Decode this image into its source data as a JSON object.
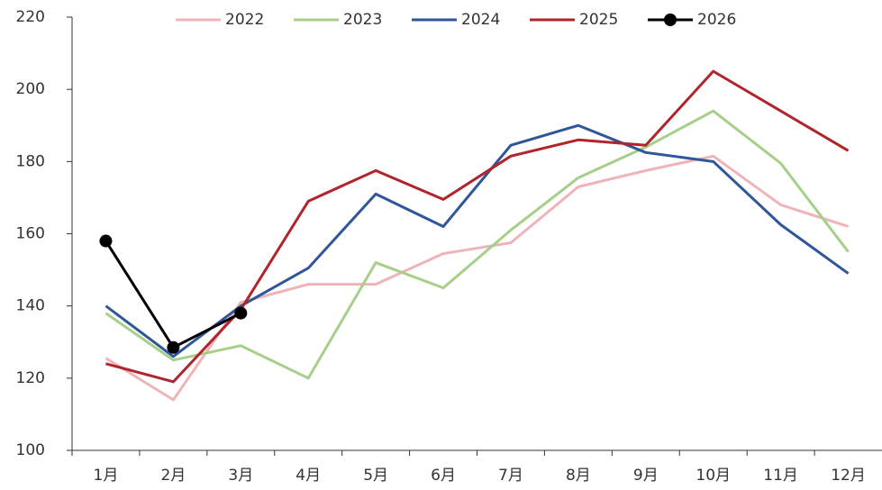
{
  "chart_data": {
    "type": "line",
    "categories": [
      "1月",
      "2月",
      "3月",
      "4月",
      "5月",
      "6月",
      "7月",
      "8月",
      "9月",
      "10月",
      "11月",
      "12月"
    ],
    "series": [
      {
        "name": "2022",
        "color": "#f0b4b8",
        "values": [
          125.5,
          114,
          141,
          146,
          146,
          154.5,
          157.5,
          173,
          177.5,
          181.5,
          168,
          162
        ]
      },
      {
        "name": "2023",
        "color": "#a6d08a",
        "values": [
          138,
          125,
          129,
          120,
          152,
          145,
          161,
          175.5,
          184,
          194,
          179.5,
          155
        ]
      },
      {
        "name": "2024",
        "color": "#30569a",
        "values": [
          140,
          126,
          140,
          150.5,
          171,
          162,
          184.5,
          190,
          182.5,
          180,
          162.5,
          149
        ]
      },
      {
        "name": "2025",
        "color": "#b0242c",
        "values": [
          124,
          119,
          139,
          169,
          177.5,
          169.5,
          181.5,
          186,
          184.5,
          205,
          194,
          183
        ]
      },
      {
        "name": "2026",
        "color": "#000000",
        "markers": true,
        "values": [
          158,
          128.5,
          138,
          null,
          null,
          null,
          null,
          null,
          null,
          null,
          null,
          null
        ]
      }
    ],
    "ylim": [
      100,
      220
    ],
    "yticks": [
      100,
      120,
      140,
      160,
      180,
      200,
      220
    ],
    "legend": "top"
  }
}
